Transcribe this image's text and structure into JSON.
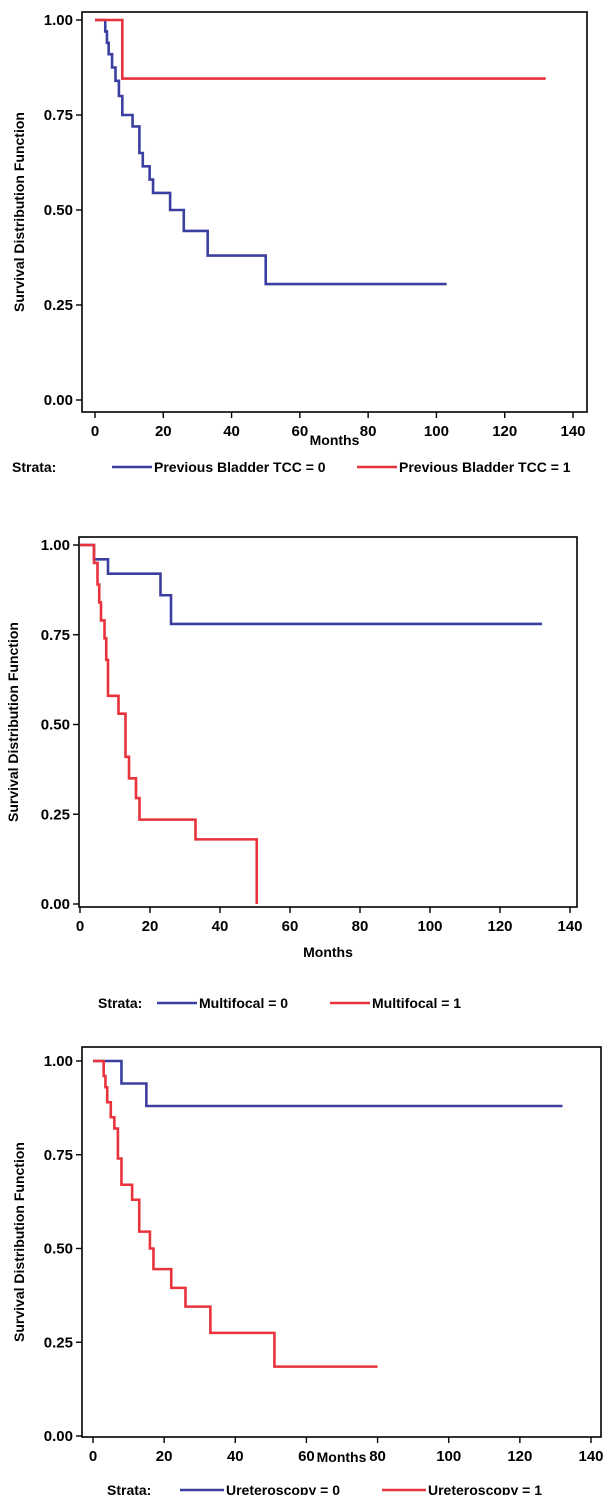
{
  "chart_data": [
    {
      "type": "line",
      "xlabel": "Months",
      "ylabel": "Survival Distribution Function",
      "xlim": [
        0,
        140
      ],
      "ylim": [
        0,
        1
      ],
      "xticks": [
        0,
        20,
        40,
        60,
        80,
        100,
        120,
        140
      ],
      "yticks": [
        0,
        0.25,
        0.5,
        0.75,
        1
      ],
      "ytick_labels": [
        "0.00",
        "0.25",
        "0.50",
        "0.75",
        "1.00"
      ],
      "legend_title": "Strata:",
      "legend_position": "bottom",
      "series": [
        {
          "name": "Previous Bladder TCC = 0",
          "color": "#3b3fa0",
          "step": true,
          "x": [
            0,
            3,
            3.5,
            4,
            5,
            6,
            7,
            8,
            11,
            13,
            14,
            16,
            17,
            18,
            22,
            26,
            33,
            50,
            103
          ],
          "y": [
            1.0,
            0.97,
            0.94,
            0.91,
            0.875,
            0.84,
            0.8,
            0.75,
            0.72,
            0.65,
            0.615,
            0.58,
            0.545,
            0.545,
            0.5,
            0.445,
            0.38,
            0.305,
            0.305
          ]
        },
        {
          "name": "Previous Bladder TCC = 1",
          "color": "#e8323c",
          "step": true,
          "x": [
            0,
            8,
            132
          ],
          "y": [
            1.0,
            0.846,
            0.846
          ]
        }
      ]
    },
    {
      "type": "line",
      "xlabel": "Months",
      "ylabel": "Survival Distribution Function",
      "xlim": [
        0,
        140
      ],
      "ylim": [
        0,
        1
      ],
      "xticks": [
        0,
        20,
        40,
        60,
        80,
        100,
        120,
        140
      ],
      "yticks": [
        0,
        0.25,
        0.5,
        0.75,
        1
      ],
      "ytick_labels": [
        "0.00",
        "0.25",
        "0.50",
        "0.75",
        "1.00"
      ],
      "legend_title": "Strata:",
      "legend_position": "bottom",
      "series": [
        {
          "name": "Multifocal = 0",
          "color": "#3b3fa0",
          "step": true,
          "x": [
            0,
            4,
            8,
            23,
            26,
            132
          ],
          "y": [
            1.0,
            0.96,
            0.92,
            0.86,
            0.78,
            0.78
          ]
        },
        {
          "name": "Multifocal = 1",
          "color": "#e8323c",
          "step": true,
          "x": [
            0,
            4,
            5,
            5.5,
            6,
            7,
            7.5,
            8,
            11,
            13,
            14,
            16,
            17,
            33,
            50.5
          ],
          "y": [
            1.0,
            0.95,
            0.89,
            0.84,
            0.79,
            0.74,
            0.68,
            0.58,
            0.53,
            0.41,
            0.35,
            0.295,
            0.235,
            0.18,
            0.0
          ]
        }
      ]
    },
    {
      "type": "line",
      "xlabel": "Months",
      "ylabel": "Survival Distribution Function",
      "xlim": [
        0,
        140
      ],
      "ylim": [
        0,
        1
      ],
      "xticks": [
        0,
        20,
        40,
        60,
        80,
        100,
        120,
        140
      ],
      "yticks": [
        0,
        0.25,
        0.5,
        0.75,
        1
      ],
      "ytick_labels": [
        "0.00",
        "0.25",
        "0.50",
        "0.75",
        "1.00"
      ],
      "legend_title": "Strata:",
      "legend_position": "bottom",
      "series": [
        {
          "name": "Ureteroscopy = 0",
          "color": "#3b3fa0",
          "step": true,
          "x": [
            0,
            8,
            15,
            132
          ],
          "y": [
            1.0,
            0.94,
            0.88,
            0.88
          ]
        },
        {
          "name": "Ureteroscopy = 1",
          "color": "#e8323c",
          "step": true,
          "x": [
            0,
            3,
            3.5,
            4,
            5,
            6,
            7,
            8,
            11,
            13,
            16,
            17,
            22,
            26,
            33,
            51,
            80
          ],
          "y": [
            1.0,
            0.96,
            0.93,
            0.89,
            0.85,
            0.82,
            0.74,
            0.67,
            0.63,
            0.545,
            0.5,
            0.445,
            0.395,
            0.345,
            0.275,
            0.185,
            0.185
          ]
        }
      ]
    }
  ]
}
